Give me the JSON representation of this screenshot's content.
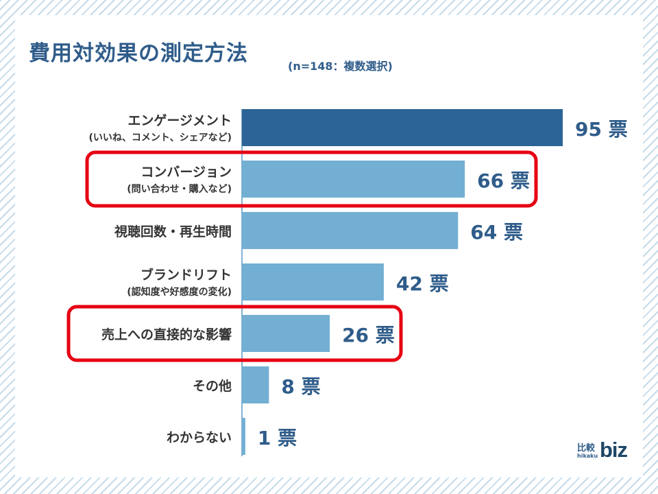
{
  "title": "費用対効果の測定方法",
  "subtitle": "(n=148：複数選択)",
  "value_unit": "票",
  "colors": {
    "primary_bar": "#2c6497",
    "secondary_bar": "#73afd3",
    "value_text": "#2f5c8a",
    "label_text": "#333333",
    "highlight": "#e60012",
    "axis": "#7fb2d5"
  },
  "logo": {
    "text": "比較",
    "sub": "hikaku",
    "brand": "biz"
  },
  "chart_data": {
    "type": "bar",
    "orientation": "horizontal",
    "categories": [
      {
        "label": "エンゲージメント",
        "sublabel": "(いいね、コメント、シェアなど)"
      },
      {
        "label": "コンバージョン",
        "sublabel": "(問い合わせ・購入など)"
      },
      {
        "label": "視聴回数・再生時間",
        "sublabel": ""
      },
      {
        "label": "ブランドリフト",
        "sublabel": "(認知度や好感度の変化)"
      },
      {
        "label": "売上への直接的な影響",
        "sublabel": ""
      },
      {
        "label": "その他",
        "sublabel": ""
      },
      {
        "label": "わからない",
        "sublabel": ""
      }
    ],
    "values": [
      95,
      66,
      64,
      42,
      26,
      8,
      1
    ],
    "emphasized_index": 0,
    "highlighted_indices": [
      1,
      4
    ],
    "grid": false,
    "legend": "none"
  }
}
